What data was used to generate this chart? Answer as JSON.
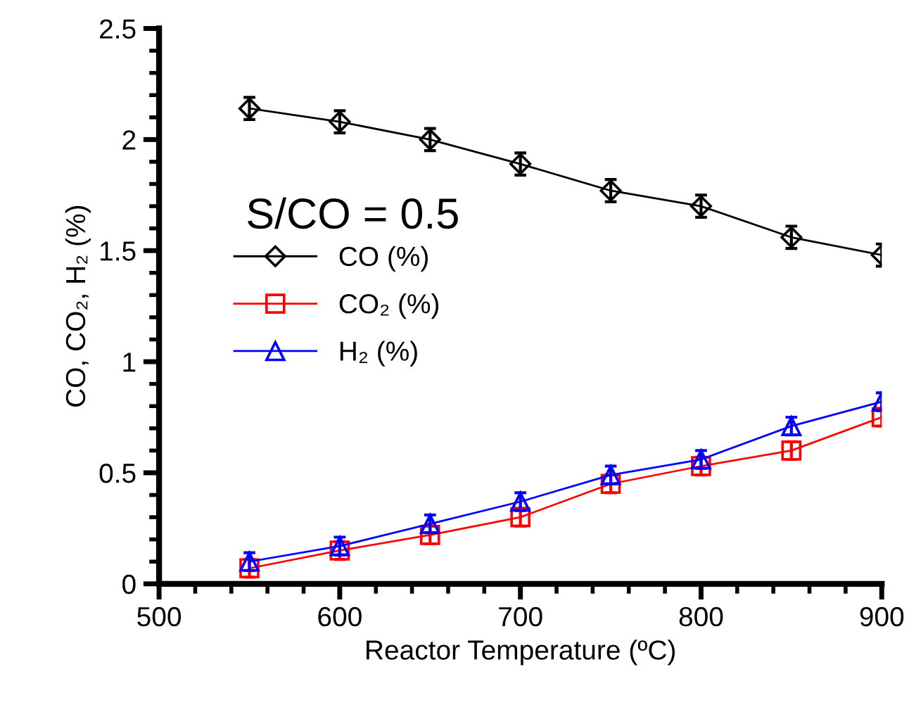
{
  "chart_data": {
    "type": "line",
    "xlabel": "Reactor Temperature (ºC)",
    "ylabel": "CO, CO₂, H₂ (%)",
    "x": [
      550,
      600,
      650,
      700,
      750,
      800,
      850,
      900
    ],
    "xlim": [
      500,
      900
    ],
    "xticks": [
      500,
      600,
      700,
      800,
      900
    ],
    "ylim": [
      0,
      2.5
    ],
    "yticks": [
      0,
      0.5,
      1,
      1.5,
      2,
      2.5
    ],
    "annotations": [
      "S/CO = 0.5"
    ],
    "legend": "left",
    "grid": false,
    "series": [
      {
        "name": "CO (%)",
        "color": "#000000",
        "marker": "diamond",
        "values": [
          2.14,
          2.08,
          2.0,
          1.89,
          1.77,
          1.7,
          1.56,
          1.48
        ],
        "errors": [
          0.05,
          0.05,
          0.05,
          0.05,
          0.05,
          0.05,
          0.05,
          0.05
        ]
      },
      {
        "name": "CO₂ (%)",
        "color": "#ff0000",
        "marker": "square",
        "values": [
          0.07,
          0.15,
          0.22,
          0.3,
          0.45,
          0.53,
          0.6,
          0.75
        ],
        "errors": [
          0.04,
          0.04,
          0.04,
          0.04,
          0.04,
          0.04,
          0.04,
          0.04
        ]
      },
      {
        "name": "H₂ (%)",
        "color": "#0000ff",
        "marker": "triangle",
        "values": [
          0.1,
          0.17,
          0.27,
          0.37,
          0.49,
          0.56,
          0.71,
          0.82
        ],
        "errors": [
          0.04,
          0.04,
          0.04,
          0.04,
          0.04,
          0.04,
          0.04,
          0.04
        ]
      }
    ]
  }
}
